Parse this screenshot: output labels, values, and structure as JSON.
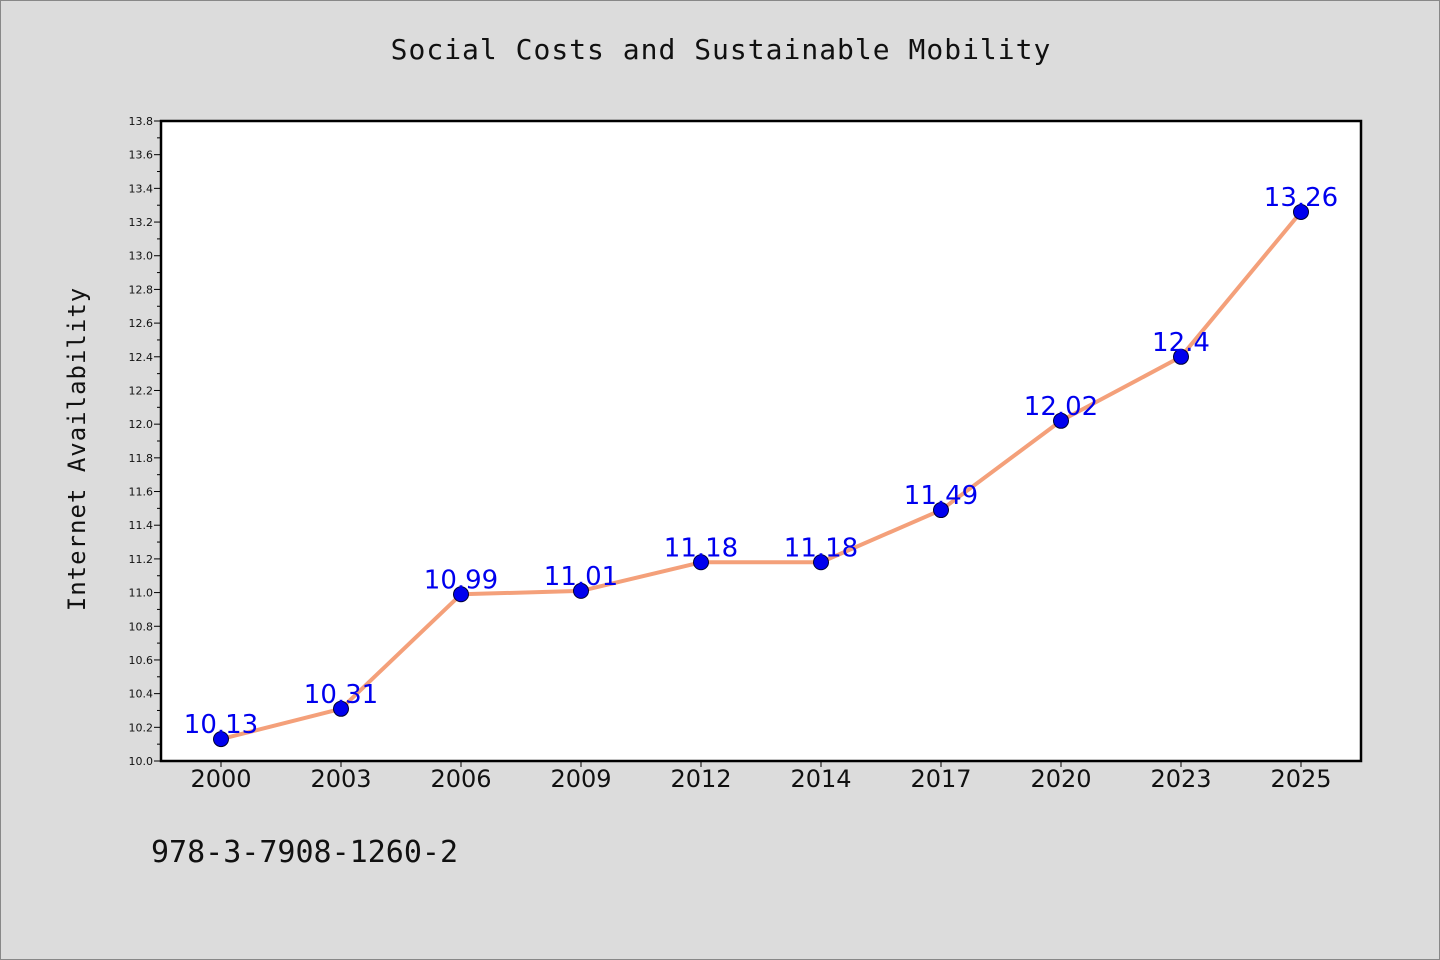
{
  "chart_data": {
    "type": "line",
    "title": "Social Costs and Sustainable Mobility",
    "xlabel": "",
    "ylabel": "Internet Availability",
    "categories": [
      "2000",
      "2003",
      "2006",
      "2009",
      "2012",
      "2014",
      "2017",
      "2020",
      "2023",
      "2025"
    ],
    "series": [
      {
        "values": [
          10.13,
          10.31,
          10.99,
          11.01,
          11.18,
          11.18,
          11.49,
          12.02,
          12.4,
          13.26
        ],
        "data_labels": [
          "10.13",
          "10.31",
          "10.99",
          "11.01",
          "11.18",
          "11.18",
          "11.49",
          "12.02",
          "12.4",
          "13.26"
        ]
      }
    ],
    "ylim": [
      10.0,
      13.8
    ],
    "yticks": [
      "10.0",
      "10.2",
      "10.4",
      "10.6",
      "10.8",
      "11.0",
      "11.2",
      "11.4",
      "11.6",
      "11.8",
      "12.0",
      "12.2",
      "12.4",
      "12.6",
      "12.8",
      "13.0",
      "13.2",
      "13.4",
      "13.6",
      "13.8"
    ],
    "grid": false,
    "line_color": "#f4a07a",
    "marker_color": "#0000ee",
    "label_color": "#0000ee"
  },
  "footer": {
    "code": "978-3-7908-1260-2"
  }
}
